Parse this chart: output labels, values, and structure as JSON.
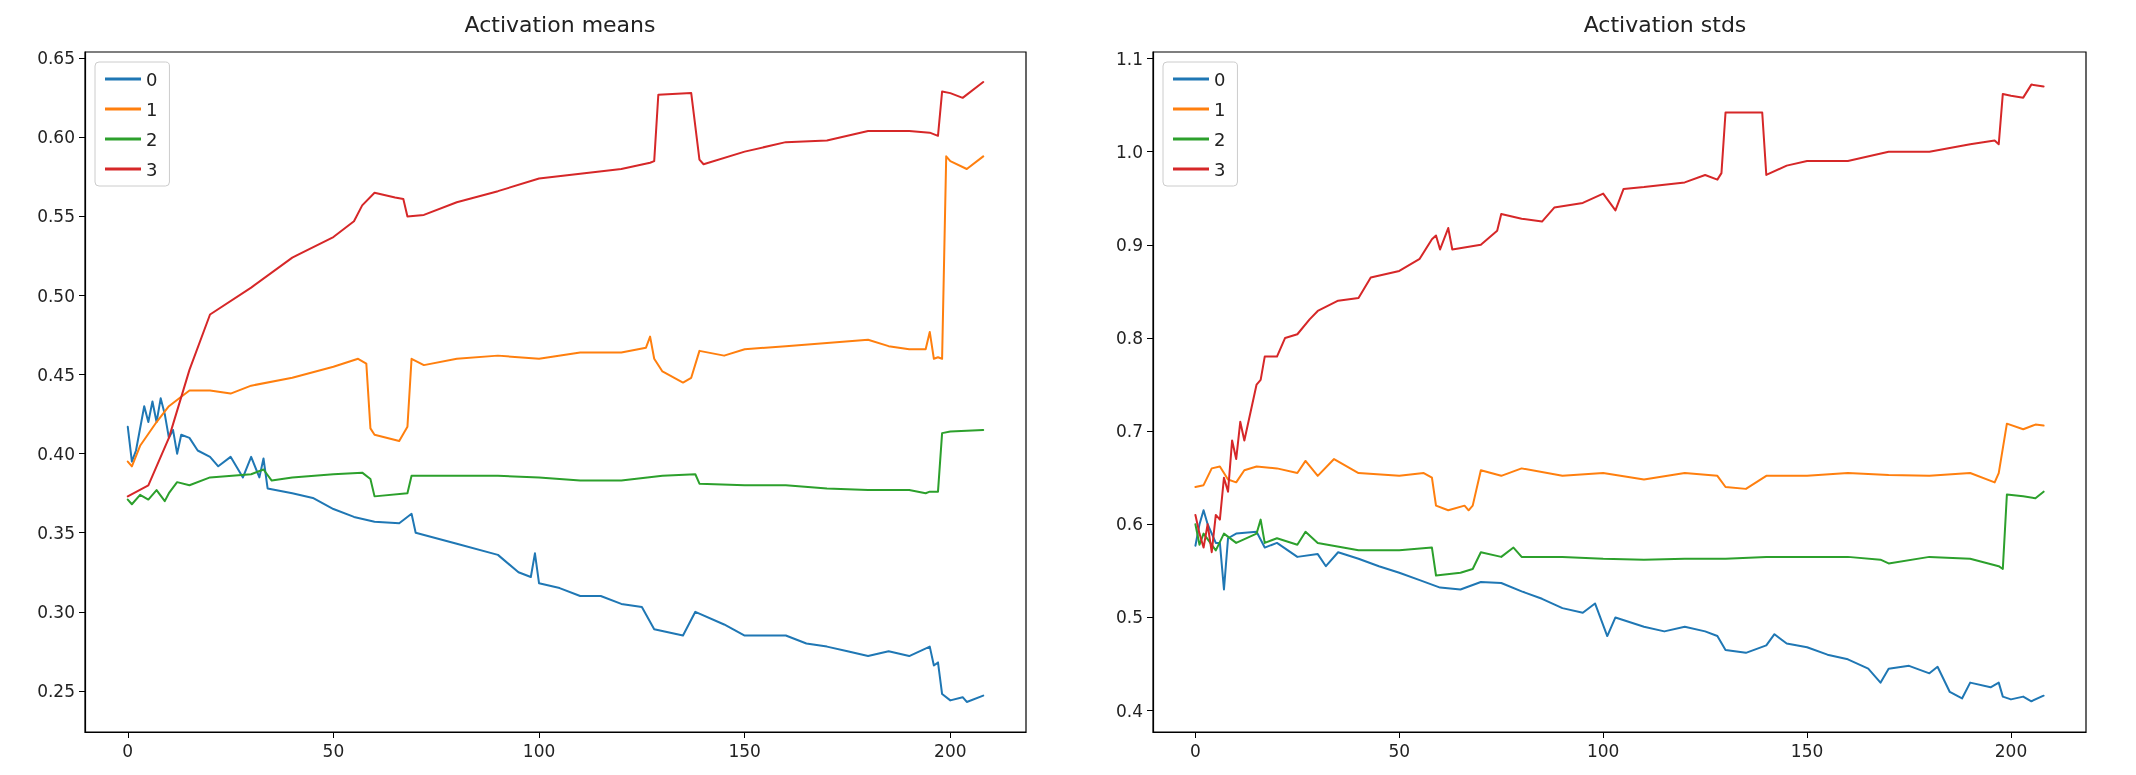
{
  "chart_data": [
    {
      "type": "line",
      "title": "Activation means",
      "legend": "top left",
      "grid": false,
      "xlim": [
        -10.4,
        218.4
      ],
      "xticks": [
        0,
        50,
        100,
        150,
        200
      ],
      "ylim": [
        0.224,
        0.654
      ],
      "yticks": [
        0.25,
        {
          "value": 0.3,
          "label": "0.30"
        },
        0.35,
        {
          "value": 0.4,
          "label": "0.40"
        },
        0.45,
        {
          "value": 0.5,
          "label": "0.50"
        },
        0.55,
        {
          "value": 0.6,
          "label": "0.60"
        },
        0.65
      ],
      "series": [
        {
          "name": "0",
          "color": "#1f77b4",
          "x": [
            0,
            1,
            2,
            4,
            5,
            6,
            7,
            8,
            9,
            10,
            11,
            12,
            13,
            15,
            17,
            20,
            22,
            25,
            28,
            30,
            32,
            33,
            34,
            40,
            45,
            50,
            55,
            60,
            66,
            69,
            70,
            80,
            90,
            95,
            98,
            99,
            100,
            105,
            110,
            115,
            120,
            125,
            128,
            135,
            138,
            145,
            150,
            160,
            165,
            170,
            175,
            180,
            185,
            190,
            195,
            196,
            197,
            198,
            200,
            203,
            204,
            208
          ],
          "values": [
            0.417,
            0.395,
            0.402,
            0.43,
            0.42,
            0.433,
            0.42,
            0.435,
            0.425,
            0.41,
            0.415,
            0.4,
            0.412,
            0.41,
            0.402,
            0.398,
            0.392,
            0.398,
            0.385,
            0.398,
            0.385,
            0.397,
            0.378,
            0.375,
            0.372,
            0.365,
            0.36,
            0.357,
            0.356,
            0.362,
            0.35,
            0.343,
            0.336,
            0.325,
            0.322,
            0.337,
            0.318,
            0.315,
            0.31,
            0.31,
            0.305,
            0.303,
            0.289,
            0.285,
            0.3,
            0.292,
            0.285,
            0.285,
            0.28,
            0.278,
            0.275,
            0.272,
            0.275,
            0.272,
            0.278,
            0.266,
            0.268,
            0.248,
            0.244,
            0.246,
            0.243,
            0.247
          ]
        },
        {
          "name": "1",
          "color": "#ff7f0e",
          "x": [
            0,
            1,
            3,
            7,
            10,
            13,
            15,
            20,
            25,
            30,
            40,
            50,
            56,
            58,
            59,
            60,
            66,
            68,
            69,
            72,
            80,
            90,
            100,
            110,
            120,
            126,
            127,
            128,
            130,
            135,
            137,
            139,
            145,
            150,
            160,
            170,
            180,
            185,
            190,
            194,
            195,
            196,
            197,
            198,
            199,
            200,
            204,
            208
          ],
          "values": [
            0.395,
            0.392,
            0.405,
            0.42,
            0.43,
            0.436,
            0.44,
            0.44,
            0.438,
            0.443,
            0.448,
            0.455,
            0.46,
            0.457,
            0.416,
            0.412,
            0.408,
            0.417,
            0.46,
            0.456,
            0.46,
            0.462,
            0.46,
            0.464,
            0.464,
            0.467,
            0.474,
            0.46,
            0.452,
            0.445,
            0.448,
            0.465,
            0.462,
            0.466,
            0.468,
            0.47,
            0.472,
            0.468,
            0.466,
            0.466,
            0.477,
            0.46,
            0.461,
            0.46,
            0.588,
            0.585,
            0.58,
            0.588
          ]
        },
        {
          "name": "2",
          "color": "#2ca02c",
          "x": [
            0,
            1,
            3,
            5,
            7,
            9,
            10,
            12,
            15,
            20,
            30,
            33,
            35,
            40,
            50,
            57,
            59,
            60,
            68,
            69,
            80,
            90,
            100,
            110,
            120,
            130,
            138,
            139,
            150,
            160,
            170,
            180,
            190,
            194,
            195,
            197,
            198,
            200,
            208
          ],
          "values": [
            0.371,
            0.368,
            0.374,
            0.371,
            0.377,
            0.37,
            0.375,
            0.382,
            0.38,
            0.385,
            0.387,
            0.39,
            0.383,
            0.385,
            0.387,
            0.388,
            0.384,
            0.373,
            0.375,
            0.386,
            0.386,
            0.386,
            0.385,
            0.383,
            0.383,
            0.386,
            0.387,
            0.381,
            0.38,
            0.38,
            0.378,
            0.377,
            0.377,
            0.375,
            0.376,
            0.376,
            0.413,
            0.414,
            0.415
          ]
        },
        {
          "name": "3",
          "color": "#d62728",
          "x": [
            0,
            5,
            10,
            15,
            20,
            30,
            40,
            50,
            55,
            57,
            60,
            65,
            67,
            68,
            72,
            80,
            90,
            100,
            110,
            120,
            127,
            128,
            129,
            137,
            139,
            140,
            150,
            160,
            170,
            180,
            190,
            195,
            197,
            198,
            200,
            203,
            208
          ],
          "values": [
            0.373,
            0.38,
            0.41,
            0.453,
            0.488,
            0.505,
            0.524,
            0.537,
            0.547,
            0.557,
            0.565,
            0.562,
            0.561,
            0.55,
            0.551,
            0.559,
            0.566,
            0.574,
            0.577,
            0.58,
            0.584,
            0.585,
            0.627,
            0.628,
            0.586,
            0.583,
            0.591,
            0.597,
            0.598,
            0.604,
            0.604,
            0.603,
            0.601,
            0.629,
            0.628,
            0.625,
            0.635
          ]
        }
      ]
    },
    {
      "type": "line",
      "title": "Activation stds",
      "legend": "top left",
      "grid": false,
      "xlim": [
        -10.4,
        218.4
      ],
      "xticks": [
        0,
        50,
        100,
        150,
        200
      ],
      "ylim": [
        0.377,
        1.107
      ],
      "yticks": [
        0.4,
        0.5,
        0.6,
        0.7,
        0.8,
        0.9,
        {
          "value": 1.0,
          "label": "1.0"
        },
        1.1
      ],
      "series": [
        {
          "name": "0",
          "color": "#1f77b4",
          "x": [
            0,
            1,
            2,
            3,
            5,
            6,
            7,
            8,
            10,
            15,
            17,
            20,
            25,
            30,
            32,
            35,
            40,
            45,
            50,
            55,
            60,
            65,
            70,
            75,
            80,
            85,
            90,
            95,
            98,
            101,
            103,
            110,
            115,
            120,
            125,
            128,
            130,
            135,
            140,
            142,
            145,
            150,
            155,
            160,
            165,
            168,
            170,
            175,
            180,
            182,
            185,
            188,
            190,
            195,
            197,
            198,
            200,
            203,
            205,
            208
          ],
          "values": [
            0.577,
            0.6,
            0.615,
            0.6,
            0.58,
            0.58,
            0.53,
            0.585,
            0.59,
            0.592,
            0.575,
            0.58,
            0.565,
            0.568,
            0.555,
            0.57,
            0.563,
            0.555,
            0.548,
            0.54,
            0.532,
            0.53,
            0.538,
            0.537,
            0.528,
            0.52,
            0.51,
            0.505,
            0.515,
            0.48,
            0.5,
            0.49,
            0.485,
            0.49,
            0.485,
            0.48,
            0.465,
            0.462,
            0.47,
            0.482,
            0.472,
            0.468,
            0.46,
            0.455,
            0.445,
            0.43,
            0.445,
            0.448,
            0.44,
            0.447,
            0.42,
            0.413,
            0.43,
            0.425,
            0.43,
            0.415,
            0.412,
            0.415,
            0.41,
            0.416
          ]
        },
        {
          "name": "1",
          "color": "#ff7f0e",
          "x": [
            0,
            2,
            4,
            6,
            8,
            10,
            12,
            15,
            20,
            25,
            27,
            30,
            34,
            40,
            50,
            56,
            58,
            59,
            62,
            66,
            67,
            68,
            70,
            75,
            80,
            90,
            100,
            110,
            120,
            128,
            130,
            135,
            140,
            150,
            160,
            170,
            180,
            190,
            196,
            197,
            199,
            203,
            206,
            208
          ],
          "values": [
            0.64,
            0.642,
            0.66,
            0.662,
            0.648,
            0.645,
            0.658,
            0.662,
            0.66,
            0.655,
            0.668,
            0.652,
            0.67,
            0.655,
            0.652,
            0.655,
            0.65,
            0.62,
            0.615,
            0.62,
            0.615,
            0.62,
            0.658,
            0.652,
            0.66,
            0.652,
            0.655,
            0.648,
            0.655,
            0.652,
            0.64,
            0.638,
            0.652,
            0.652,
            0.655,
            0.653,
            0.652,
            0.655,
            0.645,
            0.655,
            0.708,
            0.702,
            0.707,
            0.706
          ]
        },
        {
          "name": "2",
          "color": "#2ca02c",
          "x": [
            0,
            1,
            2,
            5,
            7,
            10,
            15,
            16,
            17,
            20,
            25,
            27,
            30,
            40,
            50,
            58,
            59,
            65,
            68,
            70,
            75,
            78,
            80,
            90,
            100,
            110,
            120,
            130,
            140,
            150,
            160,
            168,
            170,
            180,
            190,
            197,
            198,
            199,
            203,
            206,
            208
          ],
          "values": [
            0.6,
            0.578,
            0.59,
            0.572,
            0.59,
            0.58,
            0.59,
            0.605,
            0.58,
            0.585,
            0.578,
            0.592,
            0.58,
            0.572,
            0.572,
            0.575,
            0.545,
            0.548,
            0.552,
            0.57,
            0.565,
            0.575,
            0.565,
            0.565,
            0.563,
            0.562,
            0.563,
            0.563,
            0.565,
            0.565,
            0.565,
            0.562,
            0.558,
            0.565,
            0.563,
            0.555,
            0.552,
            0.632,
            0.63,
            0.628,
            0.635
          ]
        },
        {
          "name": "3",
          "color": "#d62728",
          "x": [
            0,
            1,
            2,
            3,
            4,
            5,
            6,
            7,
            8,
            9,
            10,
            11,
            12,
            15,
            16,
            17,
            20,
            22,
            25,
            28,
            30,
            35,
            40,
            43,
            50,
            55,
            58,
            59,
            60,
            62,
            63,
            70,
            74,
            75,
            80,
            85,
            88,
            95,
            100,
            103,
            105,
            110,
            120,
            125,
            128,
            129,
            130,
            139,
            140,
            145,
            150,
            160,
            170,
            180,
            190,
            196,
            197,
            198,
            200,
            203,
            205,
            208
          ],
          "values": [
            0.61,
            0.59,
            0.575,
            0.6,
            0.57,
            0.61,
            0.605,
            0.65,
            0.635,
            0.69,
            0.67,
            0.71,
            0.69,
            0.75,
            0.755,
            0.78,
            0.78,
            0.8,
            0.804,
            0.82,
            0.829,
            0.84,
            0.843,
            0.865,
            0.872,
            0.885,
            0.906,
            0.91,
            0.895,
            0.918,
            0.895,
            0.9,
            0.915,
            0.933,
            0.928,
            0.925,
            0.94,
            0.945,
            0.955,
            0.937,
            0.96,
            0.962,
            0.967,
            0.975,
            0.97,
            0.977,
            1.042,
            1.042,
            0.975,
            0.985,
            0.99,
            0.99,
            1.0,
            1.0,
            1.008,
            1.012,
            1.008,
            1.062,
            1.06,
            1.058,
            1.072,
            1.07
          ]
        }
      ]
    }
  ]
}
